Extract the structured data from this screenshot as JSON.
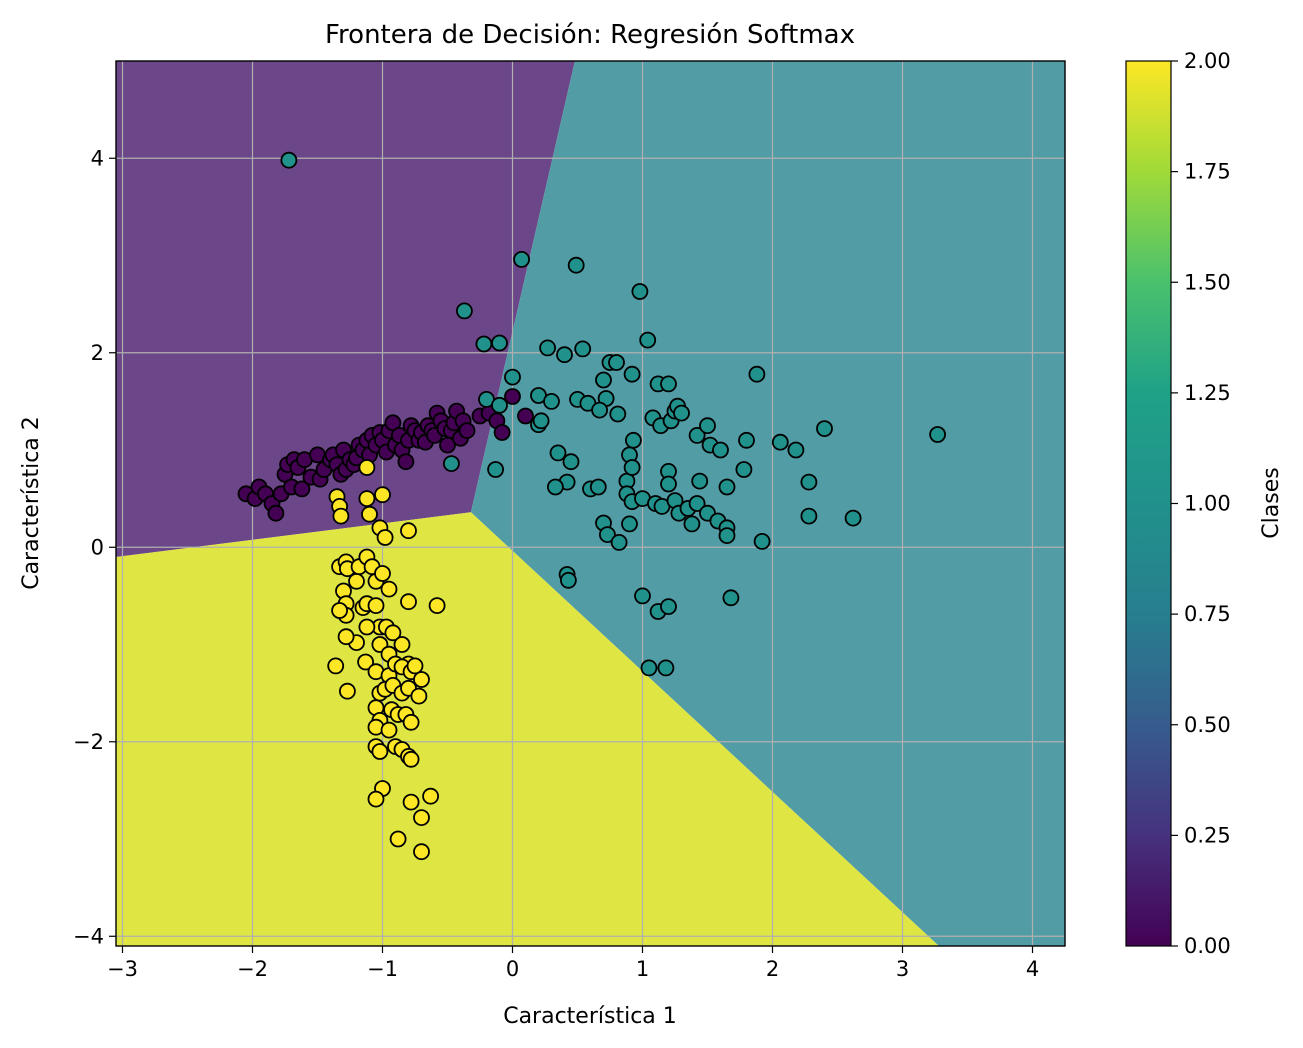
{
  "chart_data": {
    "type": "scatter",
    "title": "Frontera de Decisión: Regresión Softmax",
    "xlabel": "Característica 1",
    "ylabel": "Característica 2",
    "xlim": [
      -3.05,
      4.25
    ],
    "ylim": [
      -4.1,
      5.0
    ],
    "xticks": [
      -3,
      -2,
      -1,
      0,
      1,
      2,
      3,
      4
    ],
    "yticks": [
      -4,
      -2,
      0,
      2,
      4
    ],
    "grid": true,
    "colorbar": {
      "label": "Clases",
      "range": [
        0.0,
        2.0
      ],
      "ticks": [
        "0.00",
        "0.25",
        "0.50",
        "0.75",
        "1.00",
        "1.25",
        "1.50",
        "1.75",
        "2.00"
      ],
      "colormap": "viridis"
    },
    "class_colors": {
      "0": "#440154",
      "1": "#21918c",
      "2": "#fde725"
    },
    "region_colors": {
      "0": "#6b4688",
      "1": "#529ca5",
      "2": "#dfe542"
    },
    "decision_regions": {
      "0": [
        [
          -3.05,
          5.0
        ],
        [
          0.48,
          5.0
        ],
        [
          -0.32,
          0.36
        ],
        [
          -3.05,
          -0.1
        ]
      ],
      "1": [
        [
          0.48,
          5.0
        ],
        [
          4.25,
          5.0
        ],
        [
          4.25,
          -4.1
        ],
        [
          3.28,
          -4.1
        ],
        [
          -0.32,
          0.36
        ]
      ],
      "2": [
        [
          -3.05,
          -0.1
        ],
        [
          -0.32,
          0.36
        ],
        [
          3.28,
          -4.1
        ],
        [
          -3.05,
          -4.1
        ]
      ]
    },
    "series": [
      {
        "class": 0,
        "points": [
          [
            -2.05,
            0.55
          ],
          [
            -1.98,
            0.5
          ],
          [
            -1.95,
            0.62
          ],
          [
            -1.9,
            0.55
          ],
          [
            -1.85,
            0.45
          ],
          [
            -1.82,
            0.35
          ],
          [
            -1.78,
            0.55
          ],
          [
            -1.75,
            0.75
          ],
          [
            -1.73,
            0.85
          ],
          [
            -1.7,
            0.62
          ],
          [
            -1.68,
            0.9
          ],
          [
            -1.65,
            0.82
          ],
          [
            -1.62,
            0.6
          ],
          [
            -1.6,
            0.9
          ],
          [
            -1.55,
            0.72
          ],
          [
            -1.5,
            0.95
          ],
          [
            -1.48,
            0.7
          ],
          [
            -1.45,
            0.8
          ],
          [
            -1.4,
            0.9
          ],
          [
            -1.38,
            0.95
          ],
          [
            -1.35,
            0.85
          ],
          [
            -1.32,
            0.75
          ],
          [
            -1.3,
            1.0
          ],
          [
            -1.28,
            0.8
          ],
          [
            -1.25,
            0.9
          ],
          [
            -1.22,
            0.85
          ],
          [
            -1.2,
            0.92
          ],
          [
            -1.18,
            1.05
          ],
          [
            -1.15,
            1.0
          ],
          [
            -1.12,
            1.1
          ],
          [
            -1.1,
            0.95
          ],
          [
            -1.08,
            1.15
          ],
          [
            -1.05,
            1.05
          ],
          [
            -1.02,
            1.18
          ],
          [
            -1.0,
            1.1
          ],
          [
            -0.97,
            0.98
          ],
          [
            -0.95,
            1.2
          ],
          [
            -0.92,
            1.28
          ],
          [
            -0.9,
            1.05
          ],
          [
            -0.87,
            1.15
          ],
          [
            -0.85,
            1.0
          ],
          [
            -0.82,
            0.88
          ],
          [
            -0.8,
            1.1
          ],
          [
            -0.78,
            1.25
          ],
          [
            -0.75,
            1.2
          ],
          [
            -0.72,
            1.1
          ],
          [
            -0.7,
            1.18
          ],
          [
            -0.67,
            1.08
          ],
          [
            -0.65,
            1.25
          ],
          [
            -0.62,
            1.2
          ],
          [
            -0.6,
            1.15
          ],
          [
            -0.58,
            1.38
          ],
          [
            -0.55,
            1.3
          ],
          [
            -0.52,
            1.22
          ],
          [
            -0.5,
            1.05
          ],
          [
            -0.47,
            1.2
          ],
          [
            -0.45,
            1.28
          ],
          [
            -0.43,
            1.4
          ],
          [
            -0.4,
            1.12
          ],
          [
            -0.38,
            1.3
          ],
          [
            -0.35,
            1.2
          ],
          [
            -0.25,
            1.35
          ],
          [
            -0.18,
            1.38
          ],
          [
            -0.12,
            1.3
          ],
          [
            -0.08,
            1.18
          ],
          [
            0.0,
            1.55
          ],
          [
            0.1,
            1.35
          ]
        ]
      },
      {
        "class": 1,
        "points": [
          [
            -1.72,
            3.98
          ],
          [
            -0.37,
            2.43
          ],
          [
            0.07,
            2.96
          ],
          [
            0.49,
            2.9
          ],
          [
            0.98,
            2.63
          ],
          [
            -0.22,
            2.09
          ],
          [
            -0.1,
            2.1
          ],
          [
            0.27,
            2.05
          ],
          [
            0.4,
            1.98
          ],
          [
            0.54,
            2.04
          ],
          [
            1.04,
            2.13
          ],
          [
            -0.2,
            1.52
          ],
          [
            -0.1,
            1.46
          ],
          [
            0.0,
            1.75
          ],
          [
            0.2,
            1.56
          ],
          [
            0.3,
            1.5
          ],
          [
            0.5,
            1.52
          ],
          [
            0.58,
            1.48
          ],
          [
            0.7,
            1.72
          ],
          [
            0.75,
            1.9
          ],
          [
            0.8,
            1.9
          ],
          [
            0.72,
            1.53
          ],
          [
            0.67,
            1.41
          ],
          [
            0.81,
            1.37
          ],
          [
            0.92,
            1.78
          ],
          [
            1.08,
            1.33
          ],
          [
            1.12,
            1.68
          ],
          [
            1.14,
            1.25
          ],
          [
            1.2,
            1.68
          ],
          [
            1.22,
            1.3
          ],
          [
            1.25,
            1.4
          ],
          [
            1.27,
            1.45
          ],
          [
            1.3,
            1.38
          ],
          [
            1.42,
            1.15
          ],
          [
            1.5,
            1.25
          ],
          [
            1.52,
            1.05
          ],
          [
            1.6,
            1.0
          ],
          [
            1.8,
            1.1
          ],
          [
            1.88,
            1.78
          ],
          [
            2.06,
            1.08
          ],
          [
            2.18,
            1.0
          ],
          [
            2.4,
            1.22
          ],
          [
            3.27,
            1.16
          ],
          [
            -0.47,
            0.86
          ],
          [
            -0.13,
            0.8
          ],
          [
            0.2,
            1.26
          ],
          [
            0.22,
            1.3
          ],
          [
            0.35,
            0.97
          ],
          [
            0.45,
            0.88
          ],
          [
            0.42,
            0.67
          ],
          [
            0.33,
            0.62
          ],
          [
            0.6,
            0.6
          ],
          [
            0.66,
            0.62
          ],
          [
            0.88,
            0.68
          ],
          [
            0.9,
            0.95
          ],
          [
            0.92,
            0.82
          ],
          [
            0.93,
            1.1
          ],
          [
            0.88,
            0.55
          ],
          [
            0.92,
            0.47
          ],
          [
            0.7,
            0.25
          ],
          [
            0.73,
            0.13
          ],
          [
            0.82,
            0.05
          ],
          [
            0.9,
            0.24
          ],
          [
            1.0,
            0.5
          ],
          [
            1.1,
            0.45
          ],
          [
            1.15,
            0.42
          ],
          [
            1.2,
            0.78
          ],
          [
            1.2,
            0.65
          ],
          [
            1.25,
            0.48
          ],
          [
            1.28,
            0.35
          ],
          [
            1.35,
            0.4
          ],
          [
            1.38,
            0.24
          ],
          [
            1.42,
            0.45
          ],
          [
            1.44,
            0.68
          ],
          [
            1.5,
            0.35
          ],
          [
            1.58,
            0.27
          ],
          [
            1.65,
            0.2
          ],
          [
            1.65,
            0.12
          ],
          [
            1.65,
            0.62
          ],
          [
            1.78,
            0.8
          ],
          [
            1.92,
            0.06
          ],
          [
            2.28,
            0.32
          ],
          [
            2.28,
            0.67
          ],
          [
            2.62,
            0.3
          ],
          [
            0.42,
            -0.28
          ],
          [
            0.43,
            -0.34
          ],
          [
            1.0,
            -0.5
          ],
          [
            1.12,
            -0.66
          ],
          [
            1.2,
            -0.61
          ],
          [
            1.68,
            -0.52
          ],
          [
            1.05,
            -1.24
          ],
          [
            1.18,
            -1.24
          ]
        ]
      },
      {
        "class": 2,
        "points": [
          [
            -1.12,
            0.82
          ],
          [
            -1.35,
            0.52
          ],
          [
            -1.33,
            0.42
          ],
          [
            -1.32,
            0.32
          ],
          [
            -1.12,
            0.5
          ],
          [
            -1.1,
            0.34
          ],
          [
            -1.0,
            0.54
          ],
          [
            -1.02,
            0.2
          ],
          [
            -0.98,
            0.1
          ],
          [
            -0.8,
            0.17
          ],
          [
            -1.33,
            -0.2
          ],
          [
            -1.28,
            -0.15
          ],
          [
            -1.27,
            -0.22
          ],
          [
            -1.2,
            -0.35
          ],
          [
            -1.18,
            -0.2
          ],
          [
            -1.12,
            -0.1
          ],
          [
            -1.08,
            -0.2
          ],
          [
            -1.05,
            -0.35
          ],
          [
            -1.0,
            -0.27
          ],
          [
            -0.95,
            -0.43
          ],
          [
            -1.3,
            -0.45
          ],
          [
            -1.28,
            -0.58
          ],
          [
            -1.28,
            -0.7
          ],
          [
            -1.33,
            -0.65
          ],
          [
            -1.2,
            -0.98
          ],
          [
            -1.15,
            -0.62
          ],
          [
            -1.12,
            -0.58
          ],
          [
            -1.05,
            -0.6
          ],
          [
            -1.02,
            -0.82
          ],
          [
            -0.97,
            -0.82
          ],
          [
            -0.92,
            -0.88
          ],
          [
            -0.8,
            -0.56
          ],
          [
            -0.58,
            -0.6
          ],
          [
            -1.28,
            -0.92
          ],
          [
            -1.12,
            -0.82
          ],
          [
            -1.02,
            -1.0
          ],
          [
            -0.95,
            -1.1
          ],
          [
            -0.85,
            -1.0
          ],
          [
            -0.8,
            -1.2
          ],
          [
            -1.36,
            -1.22
          ],
          [
            -1.13,
            -1.18
          ],
          [
            -1.05,
            -1.28
          ],
          [
            -0.95,
            -1.32
          ],
          [
            -0.9,
            -1.2
          ],
          [
            -0.85,
            -1.23
          ],
          [
            -0.78,
            -1.28
          ],
          [
            -0.75,
            -1.22
          ],
          [
            -0.7,
            -1.36
          ],
          [
            -1.27,
            -1.48
          ],
          [
            -1.02,
            -1.5
          ],
          [
            -0.98,
            -1.46
          ],
          [
            -0.92,
            -1.42
          ],
          [
            -0.85,
            -1.5
          ],
          [
            -0.8,
            -1.45
          ],
          [
            -0.72,
            -1.53
          ],
          [
            -1.05,
            -1.65
          ],
          [
            -1.02,
            -1.78
          ],
          [
            -0.93,
            -1.67
          ],
          [
            -0.88,
            -1.72
          ],
          [
            -0.82,
            -1.72
          ],
          [
            -0.78,
            -1.8
          ],
          [
            -1.05,
            -1.85
          ],
          [
            -0.95,
            -1.88
          ],
          [
            -0.9,
            -2.05
          ],
          [
            -1.05,
            -2.05
          ],
          [
            -1.02,
            -2.1
          ],
          [
            -0.85,
            -2.08
          ],
          [
            -0.8,
            -2.15
          ],
          [
            -0.78,
            -2.18
          ],
          [
            -1.0,
            -2.48
          ],
          [
            -1.05,
            -2.59
          ],
          [
            -0.78,
            -2.62
          ],
          [
            -0.63,
            -2.56
          ],
          [
            -0.7,
            -2.78
          ],
          [
            -0.88,
            -3.0
          ],
          [
            -0.7,
            -3.13
          ]
        ]
      }
    ]
  }
}
